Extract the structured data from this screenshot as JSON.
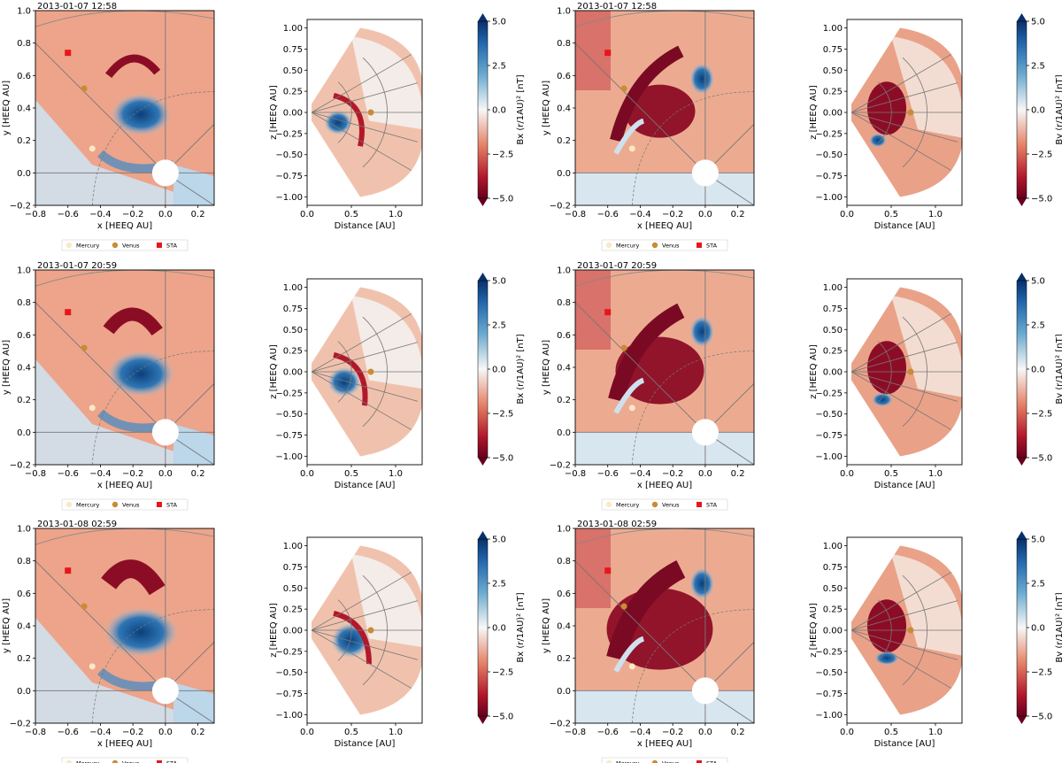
{
  "figure": {
    "equatorial_xlabel": "x [HEEQ AU]",
    "equatorial_ylabel": "y [HEEQ AU]",
    "meridional_xlabel": "Distance [AU]",
    "meridional_ylabel": "z [HEEQ AU]",
    "legend": [
      "Mercury",
      "Venus",
      "STA"
    ],
    "colorbar_labels": {
      "Bx": "Bx (r/1AU)² [nT]",
      "By": "By (r/1AU)² [nT]"
    },
    "colorbar_ticks": [
      "5.0",
      "2.5",
      "0.0",
      "−2.5",
      "−5.0"
    ],
    "colormap": {
      "positive": "#08306b",
      "zero": "#f7f7f7",
      "negative": "#67001f"
    },
    "planet_colors": {
      "Mercury": "#fbe9c6",
      "Venus": "#c98c34",
      "STA": "#e8161b"
    }
  },
  "chart_data": [
    {
      "type": "heatmap",
      "panel": "equatorial",
      "component": "Bx",
      "row": 0,
      "title": "2013-01-07 12:58",
      "xlabel": "x [HEEQ AU]",
      "ylabel": "y [HEEQ AU]",
      "xlim": [
        -0.8,
        0.3
      ],
      "ylim": [
        -0.2,
        1.0
      ],
      "xticks": [
        "−0.8",
        "−0.6",
        "−0.4",
        "−0.2",
        "0.0",
        "0.2"
      ],
      "yticks": [
        "−0.2",
        "0.0",
        "0.2",
        "0.4",
        "0.6",
        "0.8",
        "1.0"
      ],
      "markers": [
        {
          "name": "STA",
          "x": -0.6,
          "y": 0.74
        },
        {
          "name": "Venus",
          "x": -0.5,
          "y": 0.52
        },
        {
          "name": "Mercury",
          "x": -0.45,
          "y": 0.15
        }
      ]
    },
    {
      "type": "heatmap",
      "panel": "meridional",
      "component": "Bx",
      "row": 0,
      "xlabel": "Distance [AU]",
      "ylabel": "z [HEEQ AU]",
      "xlim": [
        0.0,
        1.3
      ],
      "ylim": [
        -1.1,
        1.1
      ],
      "xticks": [
        "0.0",
        "0.5",
        "1.0"
      ],
      "yticks": [
        "−1.00",
        "−0.75",
        "−0.50",
        "−0.25",
        "0.00",
        "0.25",
        "0.50",
        "0.75",
        "1.00"
      ],
      "clim": [
        -5,
        5
      ],
      "colorbar_label": "Bx (r/1AU)² [nT]",
      "markers": [
        {
          "name": "Venus",
          "x": 0.72,
          "y": 0.0
        }
      ]
    },
    {
      "type": "heatmap",
      "panel": "equatorial",
      "component": "By",
      "row": 0,
      "title": "2013-01-07 12:58",
      "xlabel": "x [HEEQ AU]",
      "ylabel": "y [HEEQ AU]",
      "xlim": [
        -0.8,
        0.3
      ],
      "ylim": [
        -0.2,
        1.0
      ],
      "xticks": [
        "−0.8",
        "−0.6",
        "−0.4",
        "−0.2",
        "0.0",
        "0.2"
      ],
      "yticks": [
        "−0.2",
        "0.0",
        "0.2",
        "0.4",
        "0.6",
        "0.8",
        "1.0"
      ],
      "markers": [
        {
          "name": "STA",
          "x": -0.6,
          "y": 0.74
        },
        {
          "name": "Venus",
          "x": -0.5,
          "y": 0.52
        },
        {
          "name": "Mercury",
          "x": -0.45,
          "y": 0.15
        }
      ]
    },
    {
      "type": "heatmap",
      "panel": "meridional",
      "component": "By",
      "row": 0,
      "xlabel": "Distance [AU]",
      "ylabel": "z [HEEQ AU]",
      "xlim": [
        0.0,
        1.3
      ],
      "ylim": [
        -1.1,
        1.1
      ],
      "xticks": [
        "0.0",
        "0.5",
        "1.0"
      ],
      "yticks": [
        "−1.00",
        "−0.75",
        "−0.50",
        "−0.25",
        "0.00",
        "0.25",
        "0.50",
        "0.75",
        "1.00"
      ],
      "clim": [
        -5,
        5
      ],
      "colorbar_label": "By (r/1AU)² [nT]",
      "markers": [
        {
          "name": "Venus",
          "x": 0.72,
          "y": 0.0
        }
      ]
    },
    {
      "type": "heatmap",
      "panel": "equatorial",
      "component": "Bx",
      "row": 1,
      "title": "2013-01-07 20:59",
      "xlabel": "x [HEEQ AU]",
      "ylabel": "y [HEEQ AU]",
      "xlim": [
        -0.8,
        0.3
      ],
      "ylim": [
        -0.2,
        1.0
      ],
      "xticks": [
        "−0.8",
        "−0.6",
        "−0.4",
        "−0.2",
        "0.0",
        "0.2"
      ],
      "yticks": [
        "−0.2",
        "0.0",
        "0.2",
        "0.4",
        "0.6",
        "0.8",
        "1.0"
      ],
      "markers": [
        {
          "name": "STA",
          "x": -0.6,
          "y": 0.74
        },
        {
          "name": "Venus",
          "x": -0.5,
          "y": 0.52
        },
        {
          "name": "Mercury",
          "x": -0.45,
          "y": 0.15
        }
      ]
    },
    {
      "type": "heatmap",
      "panel": "meridional",
      "component": "Bx",
      "row": 1,
      "xlabel": "Distance [AU]",
      "ylabel": "z [HEEQ AU]",
      "xlim": [
        0.0,
        1.3
      ],
      "ylim": [
        -1.1,
        1.1
      ],
      "xticks": [
        "0.0",
        "0.5",
        "1.0"
      ],
      "yticks": [
        "−1.00",
        "−0.75",
        "−0.50",
        "−0.25",
        "0.00",
        "0.25",
        "0.50",
        "0.75",
        "1.00"
      ],
      "clim": [
        -5,
        5
      ],
      "colorbar_label": "Bx (r/1AU)² [nT]",
      "markers": [
        {
          "name": "Venus",
          "x": 0.72,
          "y": 0.0
        }
      ]
    },
    {
      "type": "heatmap",
      "panel": "equatorial",
      "component": "By",
      "row": 1,
      "title": "2013-01-07 20:59",
      "xlabel": "x [HEEQ AU]",
      "ylabel": "y [HEEQ AU]",
      "xlim": [
        -0.8,
        0.3
      ],
      "ylim": [
        -0.2,
        1.0
      ],
      "xticks": [
        "−0.8",
        "−0.6",
        "−0.4",
        "−0.2",
        "0.0",
        "0.2"
      ],
      "yticks": [
        "−0.2",
        "0.0",
        "0.2",
        "0.4",
        "0.6",
        "0.8",
        "1.0"
      ],
      "markers": [
        {
          "name": "STA",
          "x": -0.6,
          "y": 0.74
        },
        {
          "name": "Venus",
          "x": -0.5,
          "y": 0.52
        },
        {
          "name": "Mercury",
          "x": -0.45,
          "y": 0.15
        }
      ]
    },
    {
      "type": "heatmap",
      "panel": "meridional",
      "component": "By",
      "row": 1,
      "xlabel": "Distance [AU]",
      "ylabel": "z [HEEQ AU]",
      "xlim": [
        0.0,
        1.3
      ],
      "ylim": [
        -1.1,
        1.1
      ],
      "xticks": [
        "0.0",
        "0.5",
        "1.0"
      ],
      "yticks": [
        "−1.00",
        "−0.75",
        "−0.50",
        "−0.25",
        "0.00",
        "0.25",
        "0.50",
        "0.75",
        "1.00"
      ],
      "clim": [
        -5,
        5
      ],
      "colorbar_label": "By (r/1AU)² [nT]",
      "markers": [
        {
          "name": "Venus",
          "x": 0.72,
          "y": 0.0
        }
      ]
    },
    {
      "type": "heatmap",
      "panel": "equatorial",
      "component": "Bx",
      "row": 2,
      "title": "2013-01-08 02:59",
      "xlabel": "x [HEEQ AU]",
      "ylabel": "y [HEEQ AU]",
      "xlim": [
        -0.8,
        0.3
      ],
      "ylim": [
        -0.2,
        1.0
      ],
      "xticks": [
        "−0.8",
        "−0.6",
        "−0.4",
        "−0.2",
        "0.0",
        "0.2"
      ],
      "yticks": [
        "−0.2",
        "0.0",
        "0.2",
        "0.4",
        "0.6",
        "0.8",
        "1.0"
      ],
      "markers": [
        {
          "name": "STA",
          "x": -0.6,
          "y": 0.74
        },
        {
          "name": "Venus",
          "x": -0.5,
          "y": 0.52
        },
        {
          "name": "Mercury",
          "x": -0.45,
          "y": 0.15
        }
      ]
    },
    {
      "type": "heatmap",
      "panel": "meridional",
      "component": "Bx",
      "row": 2,
      "xlabel": "Distance [AU]",
      "ylabel": "z [HEEQ AU]",
      "xlim": [
        0.0,
        1.3
      ],
      "ylim": [
        -1.1,
        1.1
      ],
      "xticks": [
        "0.0",
        "0.5",
        "1.0"
      ],
      "yticks": [
        "−1.00",
        "−0.75",
        "−0.50",
        "−0.25",
        "0.00",
        "0.25",
        "0.50",
        "0.75",
        "1.00"
      ],
      "clim": [
        -5,
        5
      ],
      "colorbar_label": "Bx (r/1AU)² [nT]",
      "markers": [
        {
          "name": "Venus",
          "x": 0.72,
          "y": 0.0
        }
      ]
    },
    {
      "type": "heatmap",
      "panel": "equatorial",
      "component": "By",
      "row": 2,
      "title": "2013-01-08 02:59",
      "xlabel": "x [HEEQ AU]",
      "ylabel": "y [HEEQ AU]",
      "xlim": [
        -0.8,
        0.3
      ],
      "ylim": [
        -0.2,
        1.0
      ],
      "xticks": [
        "−0.8",
        "−0.6",
        "−0.4",
        "−0.2",
        "0.0",
        "0.2"
      ],
      "yticks": [
        "−0.2",
        "0.0",
        "0.2",
        "0.4",
        "0.6",
        "0.8",
        "1.0"
      ],
      "markers": [
        {
          "name": "STA",
          "x": -0.6,
          "y": 0.74
        },
        {
          "name": "Venus",
          "x": -0.5,
          "y": 0.52
        },
        {
          "name": "Mercury",
          "x": -0.45,
          "y": 0.15
        }
      ]
    },
    {
      "type": "heatmap",
      "panel": "meridional",
      "component": "By",
      "row": 2,
      "xlabel": "Distance [AU]",
      "ylabel": "z [HEEQ AU]",
      "xlim": [
        0.0,
        1.3
      ],
      "ylim": [
        -1.1,
        1.1
      ],
      "xticks": [
        "0.0",
        "0.5",
        "1.0"
      ],
      "yticks": [
        "−1.00",
        "−0.75",
        "−0.50",
        "−0.25",
        "0.00",
        "0.25",
        "0.50",
        "0.75",
        "1.00"
      ],
      "clim": [
        -5,
        5
      ],
      "colorbar_label": "By (r/1AU)² [nT]",
      "markers": [
        {
          "name": "Venus",
          "x": 0.72,
          "y": 0.0
        }
      ]
    }
  ]
}
